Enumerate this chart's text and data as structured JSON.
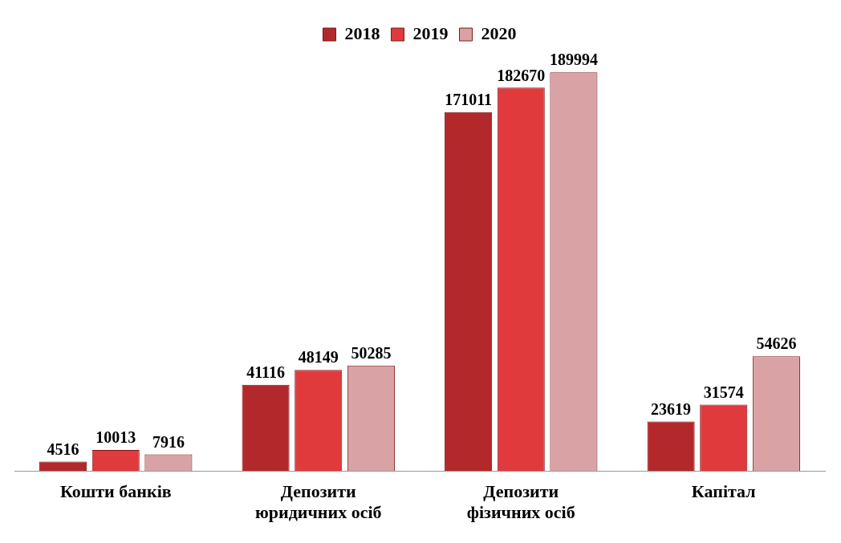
{
  "chart_data": {
    "type": "bar",
    "categories": [
      "Кошти банків",
      "Депозити юридичних осіб",
      "Депозити фізичних осіб",
      "Капітал"
    ],
    "series": [
      {
        "name": "2018",
        "color": "#b3282b",
        "values": [
          4516,
          41116,
          171011,
          23619
        ]
      },
      {
        "name": "2019",
        "color": "#e03a3c",
        "values": [
          10013,
          48149,
          182670,
          31574
        ]
      },
      {
        "name": "2020",
        "color": "#d9a3a5",
        "values": [
          7916,
          50285,
          189994,
          54626
        ]
      }
    ],
    "data_labels": true,
    "legend": "top",
    "grid": false
  }
}
